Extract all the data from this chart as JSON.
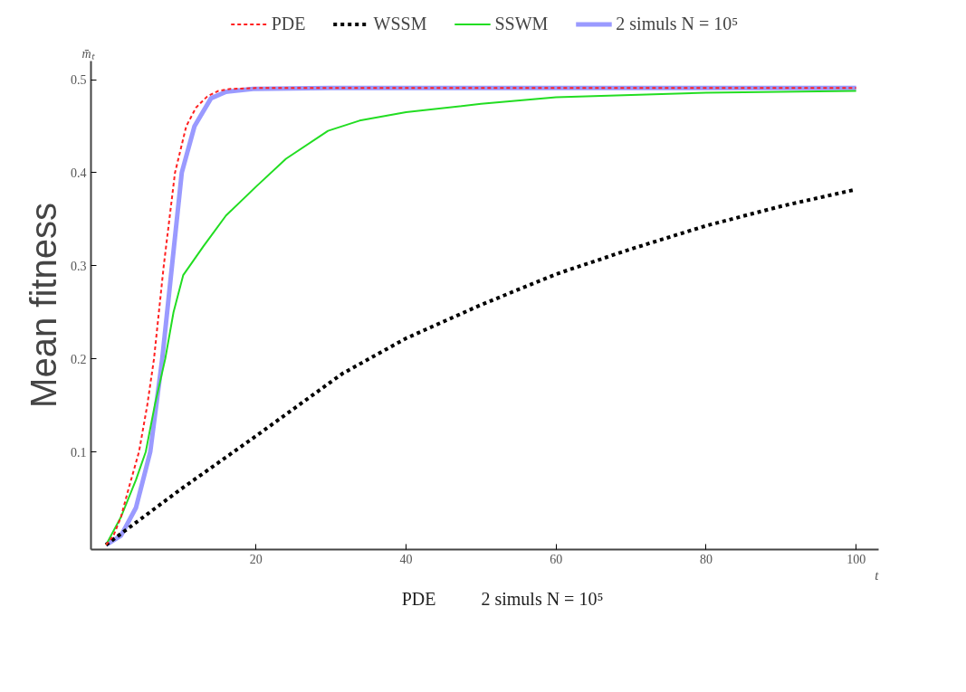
{
  "chart_data": {
    "type": "line",
    "xlabel": "t",
    "ylabel": "Mean fitness",
    "annotations": [
      "m̄ₜ",
      "PDE",
      "2 simuls N = 10⁵"
    ],
    "xlim": [
      -2,
      103
    ],
    "ylim": [
      -0.005,
      0.52
    ],
    "xticks": [
      20,
      40,
      60,
      80,
      100
    ],
    "yticks": [
      0.1,
      0.2,
      0.3,
      0.4,
      0.5
    ],
    "legend": "top",
    "grid": false,
    "series": [
      {
        "name": "PDE",
        "color": "#ff2020",
        "line_style": "dashed",
        "x": [
          0,
          1,
          2,
          3,
          4.4,
          5.5,
          6.4,
          7.7,
          9.2,
          10.7,
          12,
          13.5,
          15,
          16.6,
          20,
          30,
          50,
          100
        ],
        "values": [
          0,
          0.01,
          0.03,
          0.06,
          0.1,
          0.15,
          0.2,
          0.3,
          0.4,
          0.45,
          0.47,
          0.482,
          0.488,
          0.49,
          0.491,
          0.491,
          0.491,
          0.491
        ]
      },
      {
        "name": "WSSM",
        "color": "#000000",
        "line_style": "dotted",
        "x": [
          0,
          5,
          10,
          20,
          31.5,
          40,
          50,
          60,
          70,
          80,
          90,
          100
        ],
        "values": [
          0,
          0.03,
          0.06,
          0.117,
          0.184,
          0.222,
          0.258,
          0.291,
          0.318,
          0.343,
          0.364,
          0.382
        ]
      },
      {
        "name": "SSWM",
        "color": "#22dd22",
        "line_style": "solid",
        "x": [
          0,
          2,
          4,
          5.3,
          6.5,
          7.9,
          9,
          10.3,
          13,
          16,
          20,
          24,
          29.6,
          33.8,
          40,
          50,
          60,
          80,
          100
        ],
        "values": [
          0,
          0.03,
          0.07,
          0.1,
          0.15,
          0.2,
          0.25,
          0.29,
          0.321,
          0.354,
          0.385,
          0.415,
          0.445,
          0.456,
          0.465,
          0.474,
          0.481,
          0.486,
          0.488
        ]
      },
      {
        "name": "2 simuls N = 10⁵",
        "color": "#8888ff",
        "line_style": "solid",
        "x": [
          0,
          2,
          4,
          5.9,
          7.5,
          8.8,
          10.1,
          11.8,
          14,
          16,
          19.6,
          30,
          50,
          100
        ],
        "values": [
          0,
          0.01,
          0.04,
          0.1,
          0.2,
          0.3,
          0.4,
          0.45,
          0.48,
          0.487,
          0.49,
          0.491,
          0.491,
          0.491
        ]
      }
    ]
  }
}
